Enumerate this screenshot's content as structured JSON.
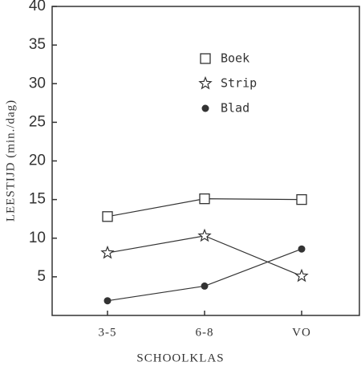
{
  "chart_data": {
    "type": "line",
    "x_label": "SCHOOLKLAS",
    "y_label": "LEESTIJD (min./dag)",
    "categories": [
      "3-5",
      "6-8",
      "VO"
    ],
    "series": [
      {
        "name": "Boek",
        "color": "#333333",
        "marker": "square",
        "values": [
          12.8,
          15.1,
          15.0
        ]
      },
      {
        "name": "Strip",
        "color": "#333333",
        "marker": "star",
        "values": [
          8.1,
          10.3,
          5.1
        ]
      },
      {
        "name": "Blad",
        "color": "#333333",
        "marker": "circle",
        "values": [
          1.9,
          3.8,
          8.6
        ]
      }
    ],
    "ylim": [
      0,
      40
    ],
    "yticks": [
      5,
      10,
      15,
      20,
      25,
      30,
      35,
      40
    ],
    "legend": "upper-center"
  }
}
